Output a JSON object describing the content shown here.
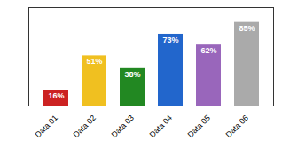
{
  "chart_data": {
    "type": "bar",
    "categories": [
      "Data 01",
      "Data 02",
      "Data 03",
      "Data 04",
      "Data 05",
      "Data 06"
    ],
    "values": [
      16,
      51,
      38,
      73,
      62,
      85
    ],
    "value_labels": [
      "16%",
      "51%",
      "38%",
      "73%",
      "62%",
      "85%"
    ],
    "colors": [
      "#cc2222",
      "#f0c020",
      "#228822",
      "#2266cc",
      "#9966bb",
      "#aaaaaa"
    ],
    "ylim": [
      0,
      100
    ],
    "data_labels": true,
    "tick_labels": "x",
    "grid": false
  }
}
